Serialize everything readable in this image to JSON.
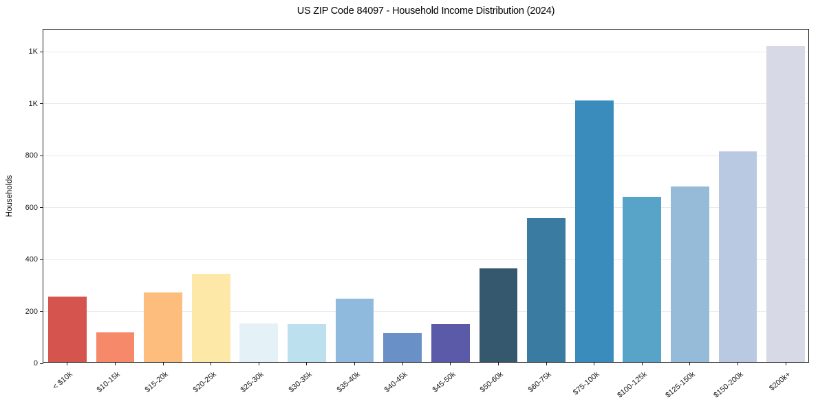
{
  "page": {
    "background": "#ffffff"
  },
  "chart_data": {
    "type": "bar",
    "title": "US ZIP Code 84097 - Household Income Distribution (2024)",
    "xlabel": "",
    "ylabel": "Households",
    "categories": [
      "< $10k",
      "$10-15k",
      "$15-20k",
      "$20-25k",
      "$25-30k",
      "$30-35k",
      "$35-40k",
      "$40-45k",
      "$45-50k",
      "$50-60k",
      "$60-75k",
      "$75-100k",
      "$100-125k",
      "$125-150k",
      "$150-200k",
      "$200k+"
    ],
    "values": [
      253,
      115,
      268,
      340,
      149,
      145,
      243,
      112,
      147,
      361,
      554,
      1008,
      637,
      676,
      810,
      1215
    ],
    "bar_colors": [
      "#d6544e",
      "#f6896a",
      "#fcbd7d",
      "#fde8a8",
      "#e4f2f7",
      "#bde0ee",
      "#8fbadd",
      "#6a90c8",
      "#5a5aa8",
      "#36586e",
      "#3a7ba1",
      "#3a8cbd",
      "#58a3c8",
      "#95bbd9",
      "#b9c9e1",
      "#d7d9e7"
    ],
    "yticks": {
      "values": [
        0,
        200,
        400,
        600,
        800,
        1000,
        1200
      ],
      "labels": [
        "0",
        "200",
        "400",
        "600",
        "800",
        "1K",
        "1K"
      ]
    },
    "ylim": [
      0,
      1285
    ],
    "bar_width_fraction": 0.8,
    "grid": "horizontal",
    "legend": "none",
    "x_label_rotation_deg": -40,
    "style_colors": {
      "grid": "#e9e9ee",
      "spine": "#1a1a1a",
      "tick_text": "#1a1a1a",
      "title_text": "#000000"
    }
  }
}
